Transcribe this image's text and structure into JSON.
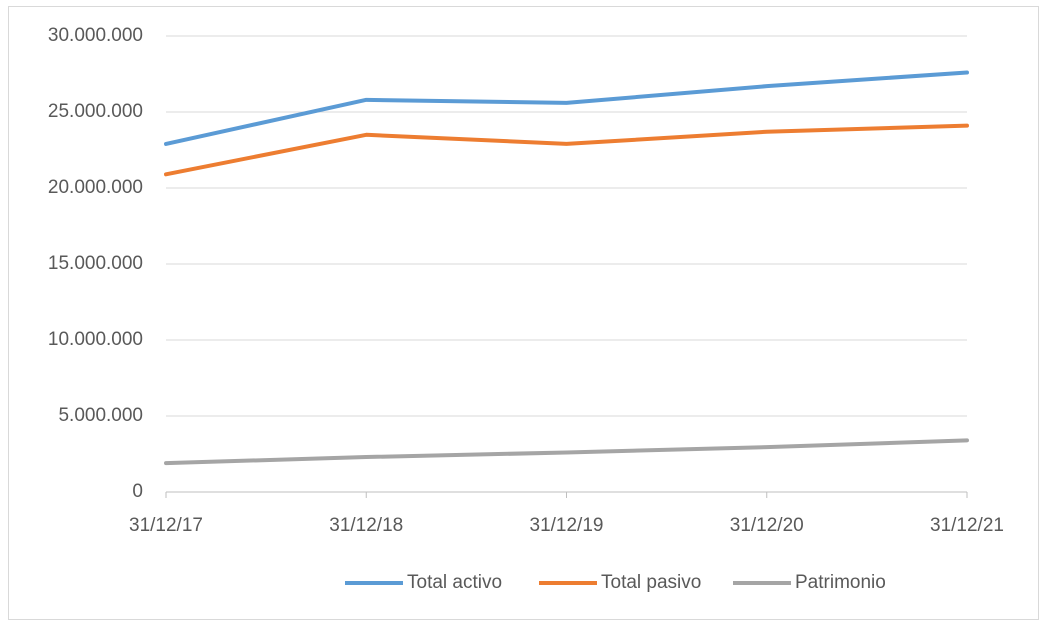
{
  "chart_data": {
    "type": "line",
    "categories": [
      "31/12/17",
      "31/12/18",
      "31/12/19",
      "31/12/20",
      "31/12/21"
    ],
    "series": [
      {
        "name": "Total activo",
        "color": "#5b9bd5",
        "values": [
          22900000,
          25800000,
          25600000,
          26700000,
          27600000
        ]
      },
      {
        "name": "Total pasivo",
        "color": "#ed7d31",
        "values": [
          20900000,
          23500000,
          22900000,
          23700000,
          24100000
        ]
      },
      {
        "name": "Patrimonio",
        "color": "#a5a5a5",
        "values": [
          1900000,
          2300000,
          2600000,
          2950000,
          3400000
        ]
      }
    ],
    "ylim": [
      0,
      30000000
    ],
    "yticks": [
      0,
      {
        "value": 5000000,
        "label": "5.000.000"
      },
      {
        "value": 10000000,
        "label": "10.000.000"
      },
      {
        "value": 15000000,
        "label": "15.000.000"
      },
      {
        "value": 20000000,
        "label": "20.000.000"
      },
      {
        "value": 25000000,
        "label": "25.000.000"
      },
      {
        "value": 30000000,
        "label": "30.000.000"
      }
    ],
    "grid": true,
    "legend": "bottom"
  }
}
